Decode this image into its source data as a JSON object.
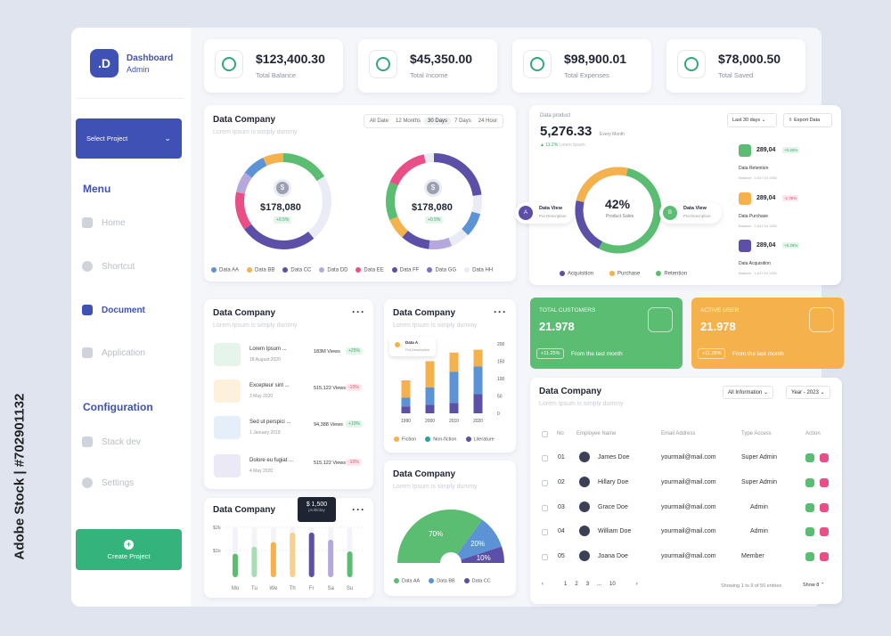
{
  "colors": {
    "accent": "#3f51b5",
    "green": "#5bbd72",
    "orange": "#f5b14c",
    "purple": "#5b4fa8",
    "pink": "#e94f86",
    "blue": "#5b93d6",
    "lilac": "#b6a8dc",
    "light": "#e9ebf5"
  },
  "sidebar": {
    "logo": ".D",
    "app_title": "Dashboard",
    "app_subtitle": "Admin",
    "select_project": "Select Project",
    "menu_heading": "Menu",
    "menu_items": [
      {
        "label": "Home",
        "icon": "home-icon"
      },
      {
        "label": "Shortcut",
        "icon": "lightning-icon"
      },
      {
        "label": "Document",
        "icon": "inbox-icon"
      },
      {
        "label": "Application",
        "icon": "grid-icon"
      }
    ],
    "config_heading": "Configuration",
    "config_items": [
      {
        "label": "Stack dev",
        "icon": "layers-icon"
      },
      {
        "label": "Settings",
        "icon": "gear-icon"
      }
    ],
    "create_project": "Create Project"
  },
  "stats": [
    {
      "value": "$123,400.30",
      "label": "Total Balance",
      "icon": "wallet-icon"
    },
    {
      "value": "$45,350.00",
      "label": "Total Income",
      "icon": "income-icon"
    },
    {
      "value": "$98,900.01",
      "label": "Total Expenses",
      "icon": "expenses-icon"
    },
    {
      "value": "$78,000.50",
      "label": "Total Saved",
      "icon": "saved-icon"
    }
  ],
  "donut_card": {
    "title": "Data Company",
    "subtitle": "Lorem Ipsum is simply dummy",
    "tabs": [
      "All Date",
      "12 Months",
      "30 Days",
      "7 Days",
      "24 Hour"
    ],
    "active_tab": "30 Days",
    "donut_value": "$178,080",
    "donut_badge": "+0.5%",
    "legend": [
      "Data AA",
      "Data BB",
      "Data CC",
      "Data DD",
      "Data EE",
      "Data FF",
      "Data GG",
      "Data HH"
    ]
  },
  "product_card": {
    "label": "Data product",
    "value": "5,276.33",
    "period": "Every Month",
    "change": "11.2%",
    "change_note": "Lorem Ipsum",
    "range_select": "Last 30 days",
    "export": "Export Data",
    "center_pct": "42%",
    "center_label": "Product Sales",
    "view_a": {
      "badge": "A",
      "title": "Data View",
      "sub": "Put Description"
    },
    "view_b": {
      "badge": "B",
      "title": "Data View",
      "sub": "Put Description"
    },
    "legend": [
      "Acquisition",
      "Purchase",
      "Retention"
    ],
    "side_stats": [
      {
        "value": "289,04",
        "badge": "+0.25%",
        "label": "Data Retention",
        "balance": "Balance : 1,617,01 USD"
      },
      {
        "value": "289,04",
        "badge": "-1.75%",
        "label": "Data Purchase",
        "balance": "Balance : 1,617,01 USD"
      },
      {
        "value": "289,04",
        "badge": "+0.25%",
        "label": "Data Acquisition",
        "balance": "Balance : 1,617,01 USD"
      }
    ]
  },
  "list_card": {
    "title": "Data Company",
    "subtitle": "Lorem Ipsum is simply dummy",
    "rows": [
      {
        "title": "Lorem Ipsum ...",
        "date": "18 August 2020",
        "views": "183M Views",
        "change": "+25%",
        "dir": "up"
      },
      {
        "title": "Excepteur sint ...",
        "date": "3 May 2020",
        "views": "515,122 Views",
        "change": "-10%",
        "dir": "down"
      },
      {
        "title": "Sed ut perspici ...",
        "date": "1 January 2019",
        "views": "94,388 Views",
        "change": "+10%",
        "dir": "up"
      },
      {
        "title": "Dolore eu fugiat ...",
        "date": "4 May 2020",
        "views": "515,122 Views",
        "change": "-10%",
        "dir": "down"
      }
    ]
  },
  "stacked_card": {
    "title": "Data Company",
    "subtitle": "Lorem Ipsum is simply dummy",
    "tooltip_title": "Data A",
    "tooltip_sub": "Put Description",
    "legend": [
      "Fiction",
      "Non-fiction",
      "Literature"
    ]
  },
  "chart_data": [
    {
      "type": "bar",
      "title": "Data Company",
      "categories": [
        "1990",
        "2000",
        "2010",
        "2020"
      ],
      "ylim": [
        0,
        200
      ],
      "yticks": [
        "0",
        "50",
        "100",
        "150",
        "200"
      ],
      "series": [
        {
          "name": "Literature",
          "values": [
            20,
            25,
            30,
            55
          ]
        },
        {
          "name": "Non-fiction",
          "values": [
            25,
            50,
            90,
            80
          ]
        },
        {
          "name": "Fiction",
          "values": [
            50,
            75,
            55,
            48
          ]
        }
      ]
    },
    {
      "type": "bar",
      "title": "Data Company",
      "categories": [
        "Mo",
        "Tu",
        "We",
        "Th",
        "Fr",
        "Sa",
        "Su"
      ],
      "yticks": [
        "$2k",
        "$1k"
      ],
      "values": [
        1.0,
        1.3,
        1.5,
        1.9,
        1.9,
        1.6,
        1.1
      ],
      "tooltip_value": "$ 1,500",
      "tooltip_label": "profit/day"
    },
    {
      "type": "pie",
      "title": "Data Company",
      "subtitle": "Lorem Ipsum is simply dummy",
      "slices": [
        {
          "name": "Data AA",
          "value": 70,
          "label": "70%"
        },
        {
          "name": "Data BB",
          "value": 20,
          "label": "20%"
        },
        {
          "name": "Data CC",
          "value": 10,
          "label": "10%"
        }
      ]
    }
  ],
  "customers": {
    "label": "TOTAL CUSTOMERS",
    "value": "21.978",
    "badge": "+11.25%",
    "note": "From the last month"
  },
  "active_users": {
    "label": "ACTIVE USER",
    "value": "21.978",
    "badge": "+11.25%",
    "note": "From the last month"
  },
  "table": {
    "title": "Data Company",
    "subtitle": "Lorem Ipsum is simply dummy",
    "filter": "All Information",
    "year": "Year - 2023",
    "headers": [
      "No",
      "Employee Name",
      "Email Address",
      "Type Access",
      "Action"
    ],
    "rows": [
      {
        "no": "01",
        "name": "James Doe",
        "email": "yourmail@mail.com",
        "access": "Super Admin"
      },
      {
        "no": "02",
        "name": "Hillary Doe",
        "email": "yourmail@mail.com",
        "access": "Super Admin"
      },
      {
        "no": "03",
        "name": "Grace Doe",
        "email": "yourmail@mail.com",
        "access": "Admin"
      },
      {
        "no": "04",
        "name": "William Doe",
        "email": "yourmail@mail.com",
        "access": "Admin"
      },
      {
        "no": "05",
        "name": "Joana Doe",
        "email": "yourmail@mail.com",
        "access": "Member"
      }
    ],
    "pages": [
      "1",
      "2",
      "3",
      "...",
      "10"
    ],
    "showing": "Showing 1 to 9 of 50 entries",
    "show": "Show 8"
  },
  "watermark": "Adobe Stock | #702901132"
}
